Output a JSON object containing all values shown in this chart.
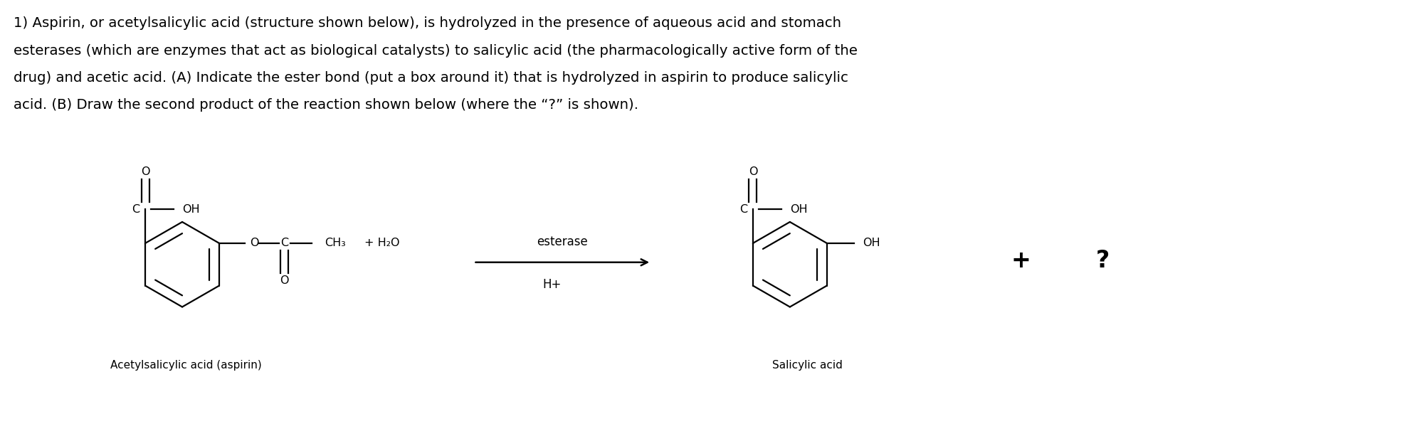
{
  "background_color": "#ffffff",
  "fig_width": 19.99,
  "fig_height": 6.27,
  "dpi": 100,
  "paragraph_lines": [
    "1) Aspirin, or acetylsalicylic acid (structure shown below), is hydrolyzed in the presence of aqueous acid and stomach",
    "esterases (which are enzymes that act as biological catalysts) to salicylic acid (the pharmacologically active form of the",
    "drug) and acetic acid. (A) Indicate the ester bond (put a box around it) that is hydrolyzed in aspirin to produce salicylic",
    "acid. (B) Draw the second product of the reaction shown below (where the “?” is shown)."
  ],
  "paragraph_fontsize": 14.2,
  "label_aspirin": "Acetylsalicylic acid (aspirin)",
  "label_salicylic": "Salicylic acid",
  "label_esterase": "esterase",
  "label_hplus": "H+",
  "label_plus": "+",
  "label_question": "?",
  "struct_fontsize": 11.5,
  "chem_lw": 1.6,
  "ring_r": 0.6
}
